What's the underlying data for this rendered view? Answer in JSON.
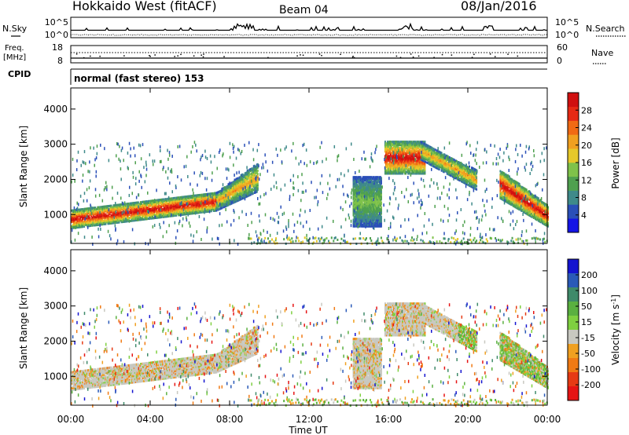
{
  "header": {
    "radar": "Hokkaido West (fitACF)",
    "beam": "Beam 04",
    "date": "08/Jan/2016"
  },
  "noise_panel": {
    "left_label": "N.Sky",
    "left_ticks": [
      "10^5",
      "10^0"
    ],
    "right_ticks": [
      "10^5",
      "10^0"
    ],
    "right_label": "N.Search"
  },
  "freq_panel": {
    "left_label_top": "Freq.",
    "left_label_unit": "[MHz]",
    "left_ticks": [
      "18",
      "8"
    ],
    "right_ticks": [
      "60",
      "0"
    ],
    "right_label": "Nave"
  },
  "cpid_panel": {
    "label": "CPID",
    "mode_text": "normal (fast stereo) 153"
  },
  "chart_data": [
    {
      "type": "heatmap",
      "name": "power",
      "xlabel": "",
      "ylabel": "Slant Range [km]",
      "xlim": [
        0,
        24
      ],
      "ylim": [
        180,
        4600
      ],
      "yticks": [
        1000,
        2000,
        3000,
        4000
      ],
      "colorbar": {
        "label": "Power [dB]",
        "ticks": [
          "4",
          "8",
          "12",
          "16",
          "20",
          "24",
          "28"
        ],
        "colors": [
          "#1414e6",
          "#2a4fb8",
          "#3f8a8a",
          "#4fa04f",
          "#7fc24a",
          "#e6c82a",
          "#f0a020",
          "#f06a14",
          "#e62a14",
          "#d01010"
        ]
      },
      "echo_regions": [
        {
          "t0": 0.0,
          "t1": 7.3,
          "r0_start": 650,
          "r0_end": 1150,
          "r1_start": 1150,
          "r1_end": 1650,
          "level": "high"
        },
        {
          "t0": 7.3,
          "t1": 9.4,
          "r0_start": 1150,
          "r0_end": 1700,
          "r1_start": 1650,
          "r1_end": 2500,
          "level": "mid"
        },
        {
          "t0": 14.2,
          "t1": 15.6,
          "r0_start": 700,
          "r0_end": 700,
          "r1_start": 2100,
          "r1_end": 2100,
          "level": "low"
        },
        {
          "t0": 15.8,
          "t1": 17.8,
          "r0_start": 2200,
          "r0_end": 2200,
          "r1_start": 3100,
          "r1_end": 3100,
          "level": "high"
        },
        {
          "t0": 17.6,
          "t1": 20.4,
          "r0_start": 2600,
          "r0_end": 1750,
          "r1_start": 3100,
          "r1_end": 2300,
          "level": "mid"
        },
        {
          "t0": 21.6,
          "t1": 24.0,
          "r0_start": 1500,
          "r0_end": 700,
          "r1_start": 2300,
          "r1_end": 1300,
          "level": "high"
        }
      ]
    },
    {
      "type": "heatmap",
      "name": "velocity",
      "xlabel": "Time UT",
      "ylabel": "Slant Range [km]",
      "xlim": [
        0,
        24
      ],
      "ylim": [
        180,
        4600
      ],
      "yticks": [
        1000,
        2000,
        3000,
        4000
      ],
      "xticks": [
        "00:00",
        "04:00",
        "08:00",
        "12:00",
        "16:00",
        "20:00",
        "00:00"
      ],
      "colorbar": {
        "label": "Velocity [m s^-1]",
        "ticks": [
          "200",
          "100",
          "50",
          "15",
          "-15",
          "-50",
          "-100",
          "-200"
        ],
        "colors": [
          "#1414d0",
          "#2a5ab8",
          "#3f8a6a",
          "#5ab040",
          "#7fd040",
          "#c8c8c0",
          "#f0a020",
          "#f07a14",
          "#e63a14",
          "#e61414"
        ]
      }
    }
  ]
}
